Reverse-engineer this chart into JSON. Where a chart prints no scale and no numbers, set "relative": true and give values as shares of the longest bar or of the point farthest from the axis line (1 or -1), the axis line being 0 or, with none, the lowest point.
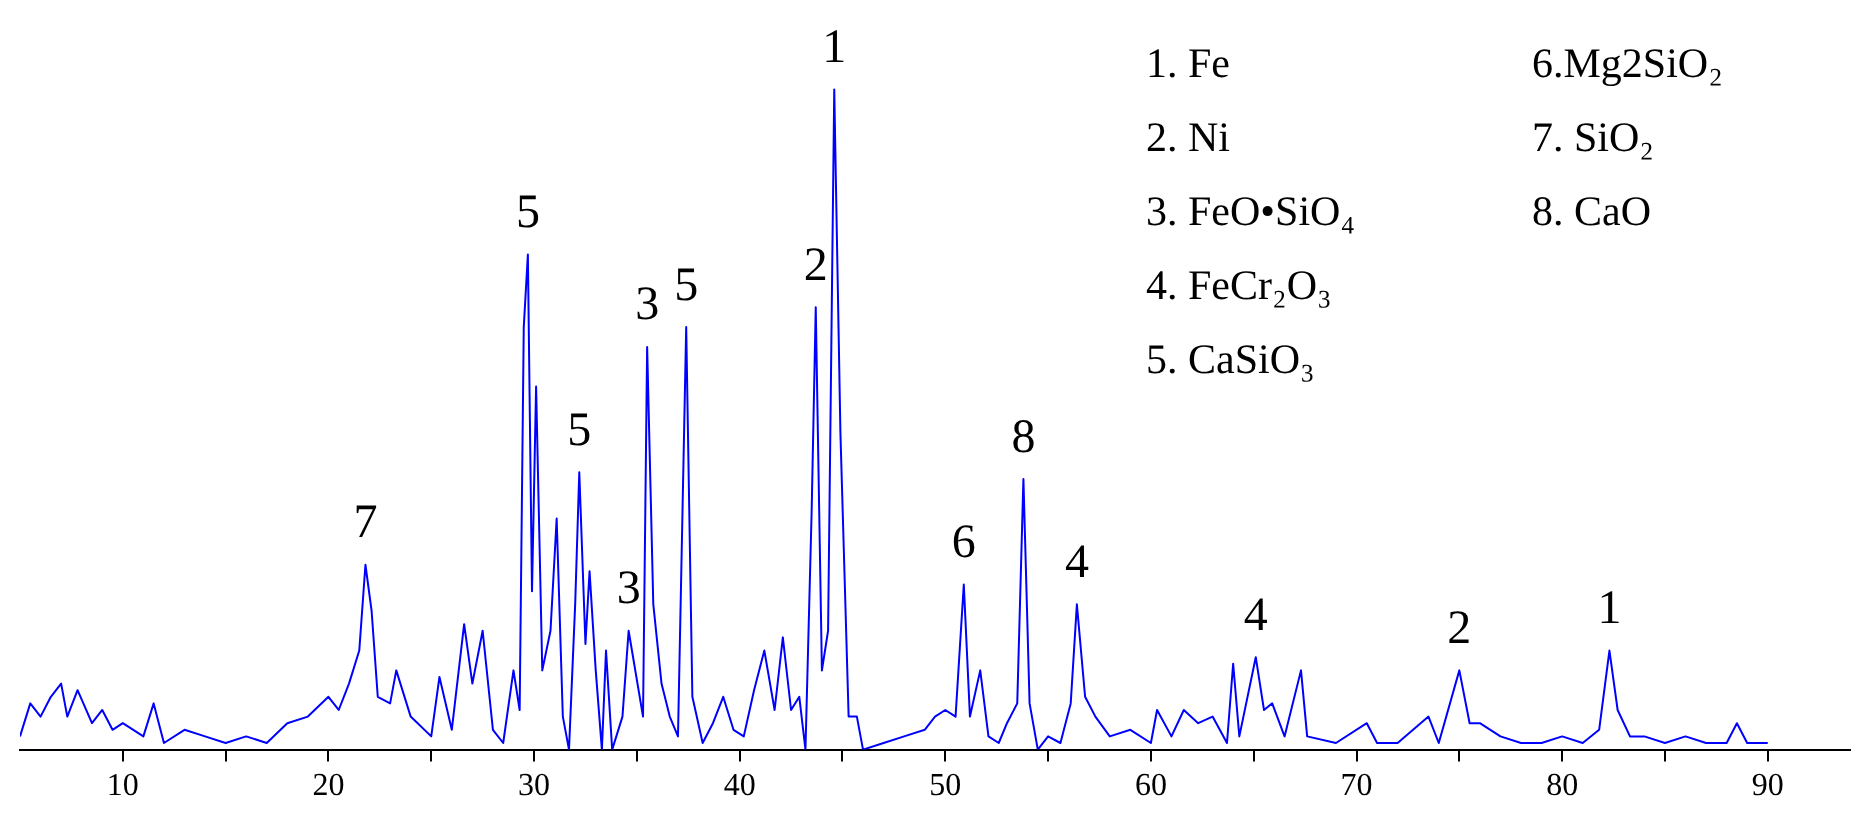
{
  "chart_data": {
    "type": "line",
    "relative": true,
    "grid": false,
    "legend": false,
    "marker": "none",
    "line_style": "solid",
    "xlim": [
      5,
      94
    ],
    "xticks": [
      10,
      {
        "value": 15,
        "label": null
      },
      20,
      {
        "value": 25,
        "label": null
      },
      30,
      {
        "value": 35,
        "label": null
      },
      40,
      {
        "value": 45,
        "label": null
      },
      50,
      {
        "value": 55,
        "label": null
      },
      60,
      {
        "value": 65,
        "label": null
      },
      70,
      {
        "value": 75,
        "label": null
      },
      80,
      {
        "value": 85,
        "label": null
      },
      90
    ],
    "series": [
      {
        "color": "#0000ff",
        "x": [
          5,
          5.5,
          6,
          6.5,
          7,
          7.3,
          7.8,
          8.5,
          9,
          9.5,
          10,
          11,
          11.5,
          12,
          13,
          14,
          15,
          16,
          17,
          18,
          19,
          20,
          20.5,
          21,
          21.5,
          21.8,
          22.1,
          22.4,
          23,
          23.3,
          24,
          25,
          25.4,
          26,
          26.6,
          27,
          27.5,
          28,
          28.5,
          29,
          29.3,
          29.5,
          29.7,
          29.9,
          30.1,
          30.4,
          30.8,
          31.1,
          31.4,
          31.7,
          32,
          32.2,
          32.5,
          32.7,
          33,
          33.3,
          33.5,
          33.8,
          34.3,
          34.6,
          35.3,
          35.5,
          35.8,
          36.2,
          36.6,
          37,
          37.4,
          37.7,
          38.2,
          38.7,
          39.2,
          39.7,
          40.2,
          40.7,
          41.2,
          41.7,
          42.1,
          42.5,
          42.9,
          43.2,
          43.5,
          43.7,
          44,
          44.3,
          44.6,
          44.9,
          45.3,
          45.7,
          46,
          47,
          48,
          49,
          49.5,
          50,
          50.5,
          50.9,
          51.2,
          51.7,
          52.1,
          52.6,
          53,
          53.5,
          53.8,
          54.1,
          54.5,
          55,
          55.6,
          56.1,
          56.4,
          56.8,
          57.3,
          58,
          59,
          60,
          60.3,
          61,
          61.6,
          62.3,
          63,
          63.7,
          64,
          64.3,
          65.1,
          65.5,
          65.9,
          66.5,
          67.3,
          67.6,
          69,
          70.5,
          71,
          72,
          73.5,
          74,
          75,
          75.5,
          76,
          77,
          78,
          79,
          80,
          81,
          81.8,
          82.3,
          82.7,
          83.3,
          84,
          85,
          86,
          87,
          88,
          88.5,
          89,
          90
        ],
        "values": [
          0.02,
          0.07,
          0.05,
          0.08,
          0.1,
          0.05,
          0.09,
          0.04,
          0.06,
          0.03,
          0.04,
          0.02,
          0.07,
          0.01,
          0.03,
          0.02,
          0.01,
          0.02,
          0.01,
          0.04,
          0.05,
          0.08,
          0.06,
          0.1,
          0.15,
          0.28,
          0.21,
          0.08,
          0.07,
          0.12,
          0.05,
          0.02,
          0.11,
          0.03,
          0.19,
          0.1,
          0.18,
          0.03,
          0.01,
          0.12,
          0.06,
          0.64,
          0.75,
          0.24,
          0.55,
          0.12,
          0.18,
          0.35,
          0.05,
          0,
          0.22,
          0.42,
          0.16,
          0.27,
          0.12,
          0,
          0.15,
          0,
          0.05,
          0.18,
          0.05,
          0.61,
          0.22,
          0.1,
          0.05,
          0.02,
          0.64,
          0.08,
          0.01,
          0.04,
          0.08,
          0.03,
          0.02,
          0.09,
          0.15,
          0.06,
          0.17,
          0.06,
          0.08,
          0,
          0.36,
          0.67,
          0.12,
          0.18,
          1,
          0.48,
          0.05,
          0.05,
          0,
          0.01,
          0.02,
          0.03,
          0.05,
          0.06,
          0.05,
          0.25,
          0.05,
          0.12,
          0.02,
          0.01,
          0.04,
          0.07,
          0.41,
          0.07,
          0,
          0.02,
          0.01,
          0.07,
          0.22,
          0.08,
          0.05,
          0.02,
          0.03,
          0.01,
          0.06,
          0.02,
          0.06,
          0.04,
          0.05,
          0.01,
          0.13,
          0.02,
          0.14,
          0.06,
          0.07,
          0.02,
          0.12,
          0.02,
          0.01,
          0.04,
          0.01,
          0.01,
          0.05,
          0.01,
          0.12,
          0.04,
          0.04,
          0.02,
          0.01,
          0.01,
          0.02,
          0.01,
          0.03,
          0.15,
          0.06,
          0.02,
          0.02,
          0.01,
          0.02,
          0.01,
          0.01,
          0.04,
          0.01,
          0.01
        ]
      }
    ],
    "annotations": [
      {
        "text": "7",
        "x": 21.8,
        "y": 0.28
      },
      {
        "text": "5",
        "x": 29.7,
        "y": 0.75
      },
      {
        "text": "5",
        "x": 32.2,
        "y": 0.42
      },
      {
        "text": "3",
        "x": 34.6,
        "y": 0.18
      },
      {
        "text": "3",
        "x": 35.5,
        "y": 0.61
      },
      {
        "text": "5",
        "x": 37.4,
        "y": 0.64
      },
      {
        "text": "2",
        "x": 43.7,
        "y": 0.67
      },
      {
        "text": "1",
        "x": 44.6,
        "y": 1
      },
      {
        "text": "6",
        "x": 50.9,
        "y": 0.25
      },
      {
        "text": "8",
        "x": 53.8,
        "y": 0.41
      },
      {
        "text": "4",
        "x": 56.4,
        "y": 0.22
      },
      {
        "text": "4",
        "x": 65.1,
        "y": 0.14
      },
      {
        "text": "2",
        "x": 75,
        "y": 0.12
      },
      {
        "text": "1",
        "x": 82.3,
        "y": 0.15
      },
      "1. Fe",
      "2. Ni",
      "3. FeO•SiO₄",
      "4. FeCr₂O₃",
      "5. CaSiO₃",
      "6.Mg2SiO₂",
      "7. SiO₂",
      "8. CaO"
    ]
  }
}
